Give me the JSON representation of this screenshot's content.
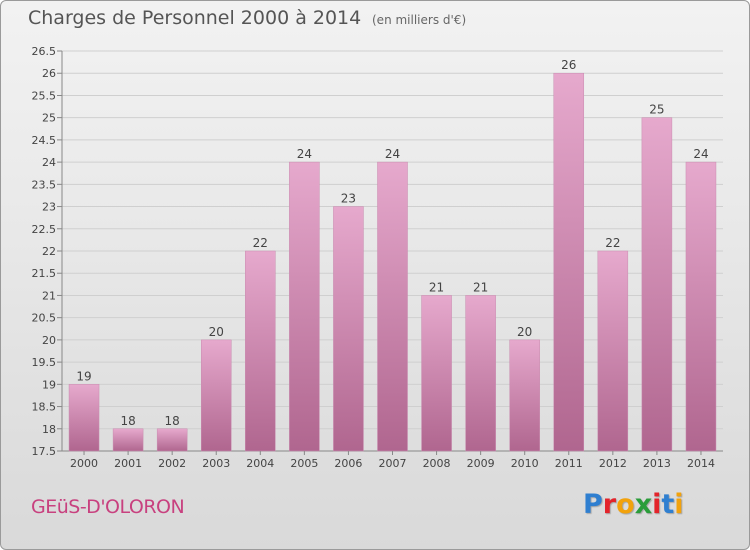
{
  "header": {
    "title": "Charges de Personnel 2000 à 2014",
    "unit_note": "(en milliers d'€)"
  },
  "footer": {
    "commune": "GEüS-D'OLORON",
    "brand_letters": [
      "P",
      "r",
      "o",
      "x",
      "i",
      "t",
      "i"
    ],
    "brand_colors": [
      "#2f7fd0",
      "#e3242b",
      "#f2a20c",
      "#2a9d3a",
      "#e3242b",
      "#2f7fd0",
      "#f2a20c"
    ]
  },
  "colors": {
    "bar_light": "#e6a9cd",
    "bar_dark": "#b0668f",
    "commune_text": "#c8417f"
  },
  "chart_data": {
    "type": "bar",
    "title": "Charges de Personnel 2000 à 2014",
    "subtitle": "(en milliers d'€)",
    "categories": [
      "2000",
      "2001",
      "2002",
      "2003",
      "2004",
      "2005",
      "2006",
      "2007",
      "2008",
      "2009",
      "2010",
      "2011",
      "2012",
      "2013",
      "2014"
    ],
    "values": [
      19,
      18,
      18,
      20,
      22,
      24,
      23,
      24,
      21,
      21,
      20,
      26,
      22,
      25,
      24
    ],
    "data_labels": [
      "19",
      "18",
      "18",
      "20",
      "22",
      "24",
      "23",
      "24",
      "21",
      "21",
      "20",
      "26",
      "22",
      "25",
      "24"
    ],
    "ylim": [
      17.5,
      26.5
    ],
    "yticks": [
      "17.5",
      "18",
      "18.5",
      "19",
      "19.5",
      "20",
      "20.5",
      "21",
      "21.5",
      "22",
      "22.5",
      "23",
      "23.5",
      "24",
      "24.5",
      "25",
      "25.5",
      "26",
      "26.5"
    ],
    "grid": true,
    "xlabel": "",
    "ylabel": ""
  }
}
